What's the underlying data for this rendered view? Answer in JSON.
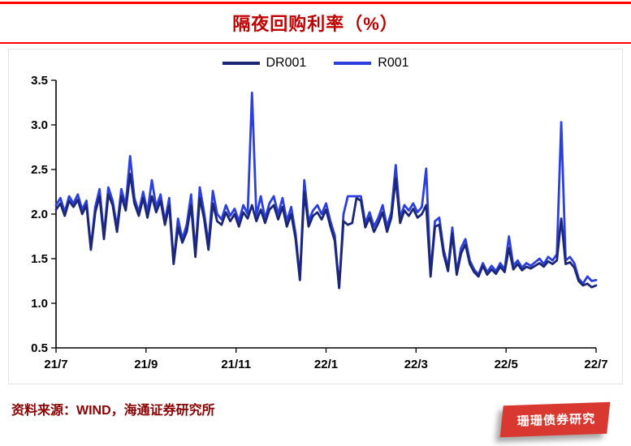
{
  "header": {
    "title": "隔夜回购利率（%）"
  },
  "footer": {
    "source": "资料来源：WIND，海通证券研究所",
    "watermark": "珊珊债券研究"
  },
  "colors": {
    "rule_red": "#FF0000",
    "title_red": "#C00000",
    "source_red": "#8B0000",
    "badge_red": "#D93830",
    "dr001_navy": "#1B2677",
    "r001_blue": "#2B3FDE"
  },
  "chart_data": {
    "type": "line",
    "title": "隔夜回购利率（%）",
    "xlabel": "",
    "ylabel": "",
    "ylim": [
      0.5,
      3.5
    ],
    "yticks": [
      0.5,
      1.0,
      1.5,
      2.0,
      2.5,
      3.0,
      3.5
    ],
    "xticklabels": [
      "21/7",
      "21/9",
      "21/11",
      "22/1",
      "22/3",
      "22/5",
      "22/7"
    ],
    "grid": false,
    "legend_position": "top-center",
    "series": [
      {
        "name": "DR001",
        "color": "#1B2677",
        "values": [
          2.05,
          2.12,
          1.98,
          2.15,
          2.08,
          2.16,
          2.0,
          2.1,
          1.6,
          2.02,
          2.2,
          1.72,
          2.22,
          2.1,
          1.8,
          2.2,
          2.04,
          2.45,
          2.12,
          1.98,
          2.18,
          1.96,
          2.2,
          2.02,
          2.15,
          1.88,
          2.1,
          1.44,
          1.85,
          1.68,
          1.8,
          2.1,
          1.52,
          2.18,
          1.95,
          1.6,
          2.12,
          1.92,
          1.88,
          2.02,
          1.92,
          2.0,
          1.86,
          2.02,
          1.95,
          2.1,
          1.92,
          2.05,
          1.9,
          2.05,
          2.1,
          1.94,
          2.08,
          1.86,
          2.0,
          1.72,
          1.26,
          2.25,
          1.86,
          1.98,
          2.02,
          1.94,
          2.05,
          1.86,
          1.7,
          1.17,
          1.92,
          1.88,
          1.9,
          2.18,
          2.15,
          1.85,
          1.96,
          1.8,
          1.9,
          2.02,
          1.8,
          1.96,
          2.4,
          1.9,
          2.04,
          1.98,
          2.06,
          1.96,
          2.0,
          2.1,
          1.3,
          1.86,
          1.88,
          1.55,
          1.36,
          1.78,
          1.32,
          1.56,
          1.66,
          1.44,
          1.35,
          1.3,
          1.42,
          1.32,
          1.38,
          1.33,
          1.41,
          1.35,
          1.62,
          1.38,
          1.44,
          1.37,
          1.41,
          1.39,
          1.42,
          1.45,
          1.41,
          1.47,
          1.44,
          1.48,
          1.95,
          1.44,
          1.46,
          1.4,
          1.25,
          1.2,
          1.22,
          1.18,
          1.2
        ]
      },
      {
        "name": "R001",
        "color": "#2B3FDE",
        "values": [
          2.1,
          2.18,
          2.02,
          2.2,
          2.12,
          2.22,
          2.05,
          2.15,
          1.62,
          2.08,
          2.28,
          1.76,
          2.3,
          2.15,
          1.85,
          2.28,
          2.1,
          2.65,
          2.18,
          2.02,
          2.25,
          2.02,
          2.38,
          2.08,
          2.22,
          1.92,
          2.18,
          1.46,
          1.95,
          1.72,
          1.88,
          2.22,
          1.56,
          2.3,
          2.02,
          1.66,
          2.26,
          2.0,
          1.94,
          2.1,
          1.98,
          2.06,
          1.92,
          2.1,
          2.0,
          3.36,
          1.98,
          2.2,
          1.95,
          2.12,
          2.2,
          2.0,
          2.18,
          1.92,
          2.08,
          1.78,
          1.28,
          2.38,
          1.92,
          2.04,
          2.1,
          2.0,
          2.12,
          1.92,
          1.76,
          1.18,
          2.0,
          2.2,
          2.2,
          2.2,
          2.2,
          1.9,
          2.02,
          1.86,
          1.96,
          2.1,
          1.86,
          2.02,
          2.55,
          1.96,
          2.1,
          2.04,
          2.12,
          2.02,
          2.08,
          2.51,
          1.32,
          1.92,
          1.96,
          1.6,
          1.4,
          1.85,
          1.35,
          1.62,
          1.72,
          1.48,
          1.38,
          1.32,
          1.45,
          1.35,
          1.42,
          1.36,
          1.45,
          1.38,
          1.75,
          1.42,
          1.48,
          1.4,
          1.45,
          1.42,
          1.46,
          1.5,
          1.44,
          1.52,
          1.48,
          1.55,
          3.03,
          1.48,
          1.52,
          1.45,
          1.28,
          1.22,
          1.3,
          1.25,
          1.26
        ]
      }
    ]
  }
}
